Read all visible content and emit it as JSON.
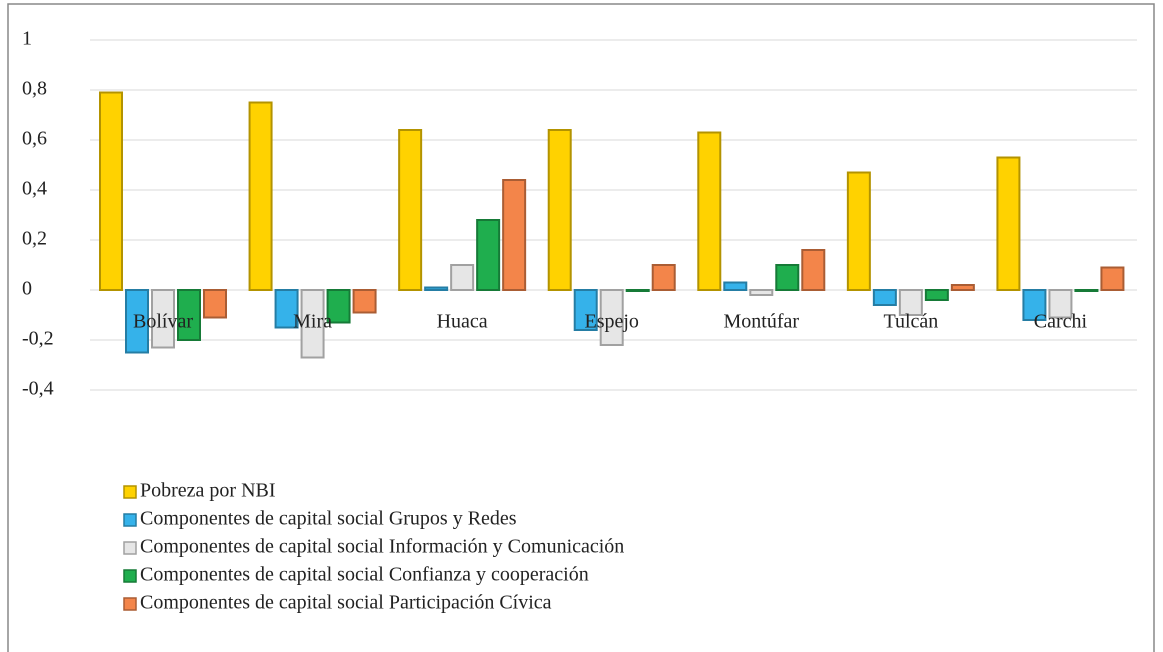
{
  "chart_data": {
    "type": "bar",
    "categories": [
      "Bolívar",
      "Mira",
      "Huaca",
      "Espejo",
      "Montúfar",
      "Tulcán",
      "Carchi"
    ],
    "series": [
      {
        "name": "Pobreza por NBI",
        "color": "#ffd200",
        "values": [
          0.79,
          0.75,
          0.64,
          0.64,
          0.63,
          0.47,
          0.53
        ]
      },
      {
        "name": "Componentes de capital social Grupos y Redes",
        "color": "#35b2ea",
        "values": [
          -0.25,
          -0.15,
          0.01,
          -0.16,
          0.03,
          -0.06,
          -0.12
        ]
      },
      {
        "name": "Componentes de capital social Información y Comunicación",
        "color": "#e6e6e6",
        "values": [
          -0.23,
          -0.27,
          0.1,
          -0.22,
          -0.02,
          -0.1,
          -0.11
        ]
      },
      {
        "name": "Componentes de capital social Confianza y cooperación",
        "color": "#1fae4e",
        "values": [
          -0.2,
          -0.13,
          0.28,
          0,
          0.1,
          -0.04,
          0
        ]
      },
      {
        "name": "Componentes de capital social Participación Cívica",
        "color": "#f3854a",
        "values": [
          -0.11,
          -0.09,
          0.44,
          0.1,
          0.16,
          0.02,
          0.09
        ]
      }
    ],
    "ylim": [
      -0.4,
      1
    ],
    "yticks": [
      {
        "value": -0.4,
        "label": "-0,4"
      },
      {
        "value": -0.2,
        "label": "-0,2"
      },
      0,
      {
        "value": 0.2,
        "label": "0,2"
      },
      {
        "value": 0.4,
        "label": "0,4"
      },
      {
        "value": 0.6,
        "label": "0,6"
      },
      {
        "value": 0.8,
        "label": "0,8"
      },
      1
    ],
    "grid": true,
    "legend": "bottom-left"
  }
}
